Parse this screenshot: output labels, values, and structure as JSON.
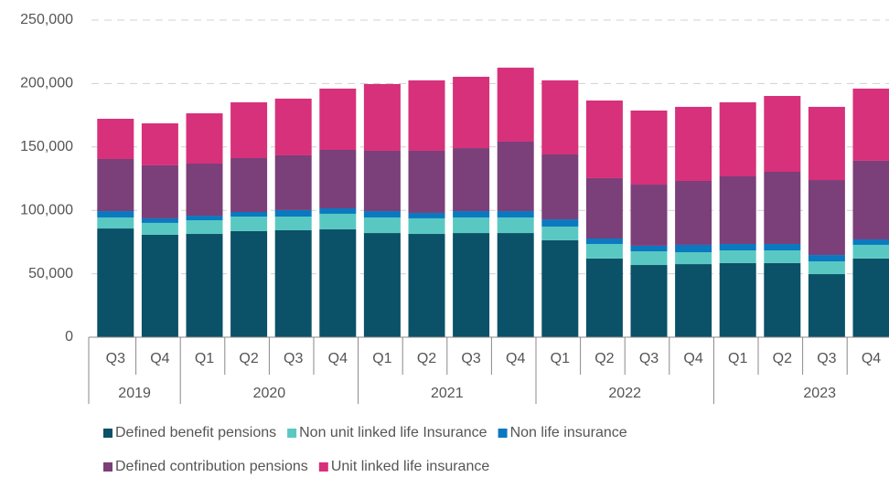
{
  "chart_data": {
    "type": "stacked_bar",
    "categories": [
      "Q3",
      "Q4",
      "Q1",
      "Q2",
      "Q3",
      "Q4",
      "Q1",
      "Q2",
      "Q3",
      "Q4",
      "Q1",
      "Q2",
      "Q3",
      "Q4",
      "Q1",
      "Q2",
      "Q3",
      "Q4"
    ],
    "year_groups": [
      "2019",
      "2020",
      "2021",
      "2022",
      "2023"
    ],
    "series": [
      {
        "name": "Defined benefit pensions",
        "color": "#0b5168",
        "values": [
          85700,
          80700,
          81400,
          83600,
          84300,
          85000,
          82100,
          81400,
          82100,
          82100,
          76400,
          62000,
          56900,
          57600,
          58400,
          58400,
          49700,
          62000
        ]
      },
      {
        "name": "Non unit linked life Insurance",
        "color": "#5ac8c2",
        "values": [
          8700,
          9400,
          10800,
          11500,
          10800,
          12300,
          12300,
          12300,
          12300,
          12300,
          10800,
          11500,
          10800,
          9400,
          10000,
          10000,
          10100,
          10800
        ]
      },
      {
        "name": "Non life insurance",
        "color": "#0a79bf",
        "values": [
          5000,
          3600,
          3600,
          3600,
          5100,
          4300,
          5000,
          4300,
          5000,
          5000,
          5700,
          4300,
          4400,
          5800,
          5100,
          5100,
          5000,
          4300
        ]
      },
      {
        "name": "Defined contribution pensions",
        "color": "#7b3f7a",
        "values": [
          41100,
          41800,
          41100,
          42500,
          43200,
          46100,
          47600,
          49000,
          49700,
          54800,
          51200,
          47600,
          48200,
          50400,
          53300,
          56900,
          59100,
          62000
        ]
      },
      {
        "name": "Unit linked life insurance",
        "color": "#d6317a",
        "values": [
          31700,
          33100,
          39600,
          44000,
          44700,
          48300,
          52600,
          55500,
          56200,
          58300,
          58400,
          61200,
          58400,
          58400,
          58400,
          59800,
          57700,
          56900
        ]
      }
    ],
    "ylim": [
      0,
      250000
    ],
    "yticks": [
      0,
      {
        "value": 50000,
        "label": "50,000"
      },
      {
        "value": 100000,
        "label": "100,000"
      },
      {
        "value": 150000,
        "label": "150,000"
      },
      {
        "value": 200000,
        "label": "200,000"
      },
      {
        "value": 250000,
        "label": "250,000"
      }
    ],
    "grid": true
  }
}
